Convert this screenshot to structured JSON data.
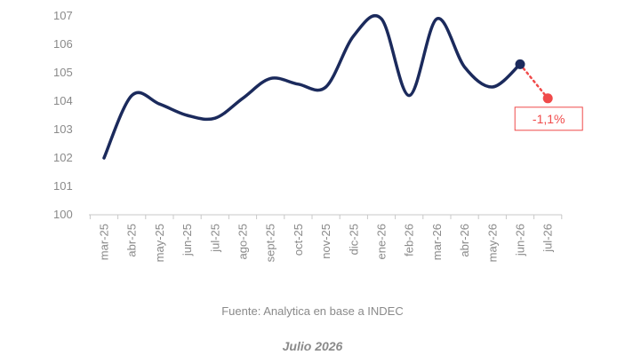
{
  "chart_data": {
    "type": "line",
    "title": "",
    "xlabel": "",
    "ylabel": "",
    "categories": [
      "mar-25",
      "abr-25",
      "may-25",
      "jun-25",
      "jul-25",
      "ago-25",
      "sept-25",
      "oct-25",
      "nov-25",
      "dic-25",
      "ene-26",
      "feb-26",
      "mar-26",
      "abr-26",
      "may-26",
      "jun-26",
      "jul-26"
    ],
    "yticks": [
      "100",
      "101",
      "102",
      "103",
      "104",
      "105",
      "106",
      "107"
    ],
    "ylim": [
      100,
      107
    ],
    "series": [
      {
        "color": "#1b2a5c",
        "values": [
          102.0,
          104.2,
          103.9,
          103.5,
          103.4,
          104.1,
          104.8,
          104.6,
          104.5,
          106.3,
          106.9,
          104.2,
          106.9,
          105.2,
          104.5,
          105.3,
          null
        ]
      }
    ],
    "projection": {
      "from_index": 15,
      "to_index": 16,
      "from_value": 105.3,
      "value": 104.1,
      "label": "-1,1%",
      "color": "#f04a4a"
    },
    "grid": false
  },
  "source": "Fuente: Analytica en base a INDEC",
  "date_label": "Julio 2026"
}
